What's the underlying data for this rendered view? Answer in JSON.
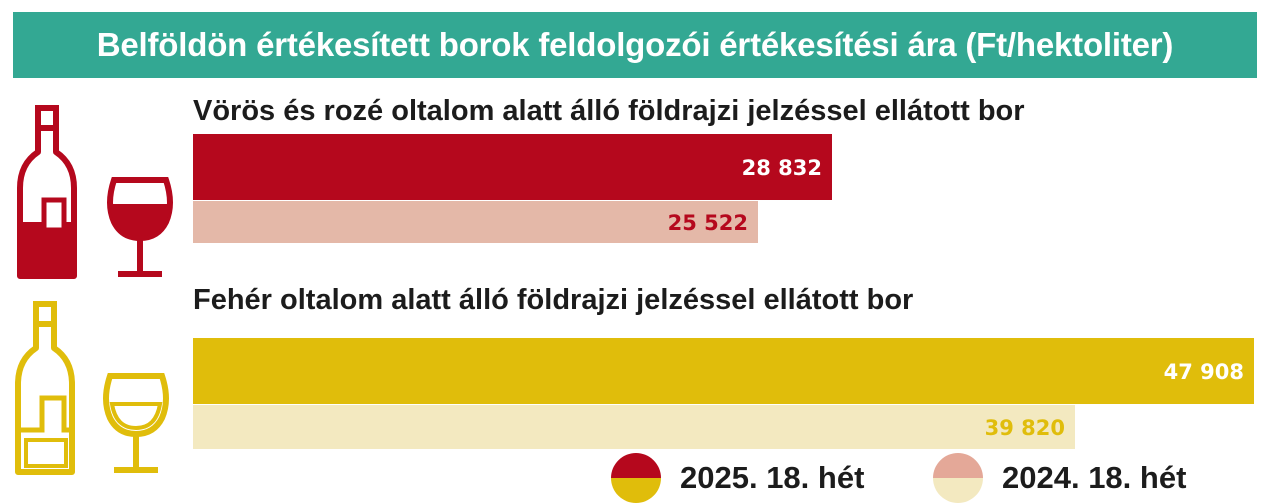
{
  "header": {
    "title": "Belföldön értékesített borok feldolgozói értékesítési ára  (Ft/hektoliter)"
  },
  "colors": {
    "header_bg": "#33a893",
    "red_current": "#b5081d",
    "red_previous": "#e4b8a8",
    "white_current": "#e0bd0b",
    "white_previous": "#f3e9c0"
  },
  "icons": {
    "red": [
      "red-wine-bottle-icon",
      "red-wine-glass-icon"
    ],
    "white": [
      "white-wine-bottle-icon",
      "white-wine-glass-icon"
    ]
  },
  "chart_data": {
    "type": "bar",
    "orientation": "horizontal",
    "groups": [
      {
        "name": "Vörös és rozé oltalom alatt álló földrajzi jelzéssel ellátott bor",
        "values": [
          {
            "series": "2025. 18. hét",
            "value": 28832,
            "label": "28 832"
          },
          {
            "series": "2024. 18. hét",
            "value": 25522,
            "label": "25 522"
          }
        ]
      },
      {
        "name": "Fehér oltalom alatt álló földrajzi jelzéssel ellátott bor",
        "values": [
          {
            "series": "2025. 18. hét",
            "value": 47908,
            "label": "47 908"
          },
          {
            "series": "2024. 18. hét",
            "value": 39820,
            "label": "39 820"
          }
        ]
      }
    ],
    "legend": [
      "2025. 18. hét",
      "2024. 18. hét"
    ],
    "legend_position": "bottom-right",
    "grid": false
  }
}
